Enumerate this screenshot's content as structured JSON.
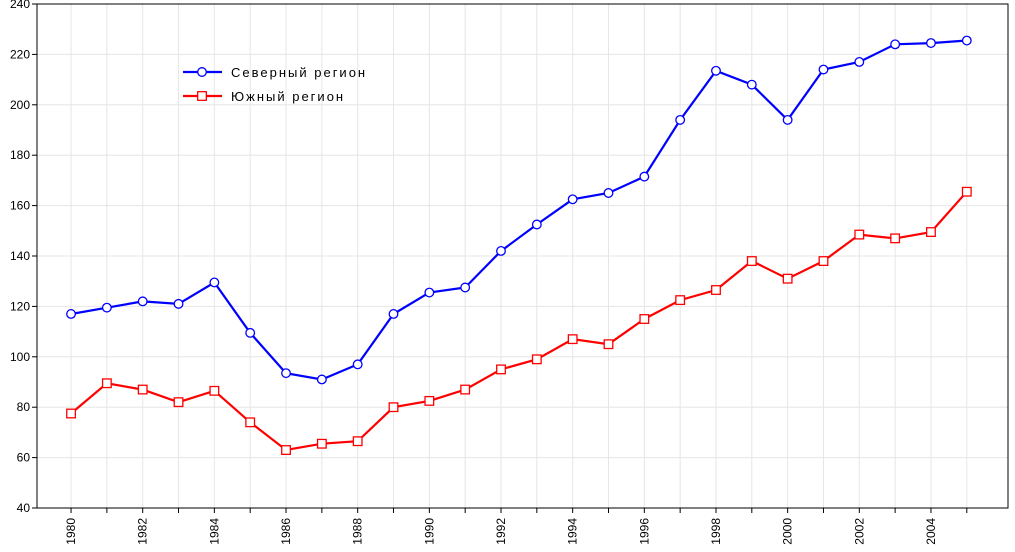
{
  "chart_data": {
    "type": "line",
    "title": "",
    "xlabel": "",
    "ylabel": "",
    "x": [
      1980,
      1981,
      1982,
      1983,
      1984,
      1985,
      1986,
      1987,
      1988,
      1989,
      1990,
      1991,
      1992,
      1993,
      1994,
      1995,
      1996,
      1997,
      1998,
      1999,
      2000,
      2001,
      2002,
      2003,
      2004,
      2005
    ],
    "xlim": [
      1979.05,
      2006.15
    ],
    "ylim": [
      40,
      240
    ],
    "x_ticks": [
      "1980",
      "1982",
      "1984",
      "1986",
      "1988",
      "1990",
      "1992",
      "1994",
      "1996",
      "1998",
      "2000",
      "2002",
      "2004"
    ],
    "y_ticks": [
      "40",
      "60",
      "80",
      "100",
      "120",
      "140",
      "160",
      "180",
      "200",
      "220",
      "240"
    ],
    "grid": true,
    "legend_position": "top-left",
    "series": [
      {
        "name": "Северный регион",
        "color": "#0000ff",
        "marker": "circle",
        "values": [
          117,
          119.5,
          122,
          121,
          129.5,
          109.5,
          93.5,
          91,
          97,
          117,
          125.5,
          127.5,
          142,
          152.5,
          162.5,
          165,
          171.5,
          194,
          213.5,
          208,
          194,
          214,
          217,
          224,
          224.5,
          225.5
        ]
      },
      {
        "name": "Южный регион",
        "color": "#ff0000",
        "marker": "square",
        "values": [
          77.5,
          89.5,
          87,
          82,
          86.5,
          74,
          63,
          65.5,
          66.5,
          80,
          82.5,
          87,
          95,
          99,
          107,
          105,
          115,
          122.5,
          126.5,
          138,
          131,
          138,
          148.5,
          147,
          149.5,
          165.5
        ]
      }
    ]
  }
}
